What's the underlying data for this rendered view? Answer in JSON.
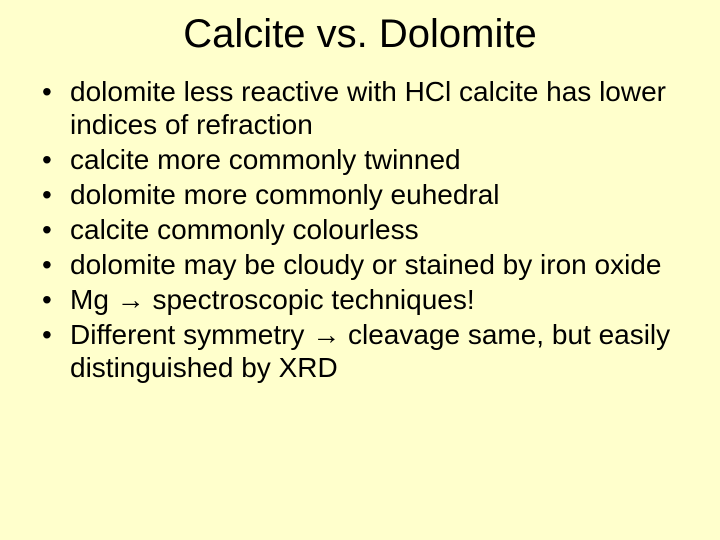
{
  "background_color": "#ffffcc",
  "text_color": "#000000",
  "title": {
    "text": "Calcite vs. Dolomite",
    "fontsize": 40,
    "align": "center"
  },
  "bullets": [
    {
      "text": "dolomite less reactive with HCl calcite has lower indices of refraction"
    },
    {
      "text": "calcite more commonly twinned"
    },
    {
      "text": "dolomite more commonly euhedral"
    },
    {
      "text": "calcite commonly colourless"
    },
    {
      "text": "dolomite may be cloudy or stained by iron oxide"
    },
    {
      "text": "Mg → spectroscopic techniques!"
    },
    {
      "text": "Different symmetry → cleavage same, but easily distinguished by XRD"
    }
  ],
  "bullet_fontsize": 28,
  "bullet_marker": "•"
}
